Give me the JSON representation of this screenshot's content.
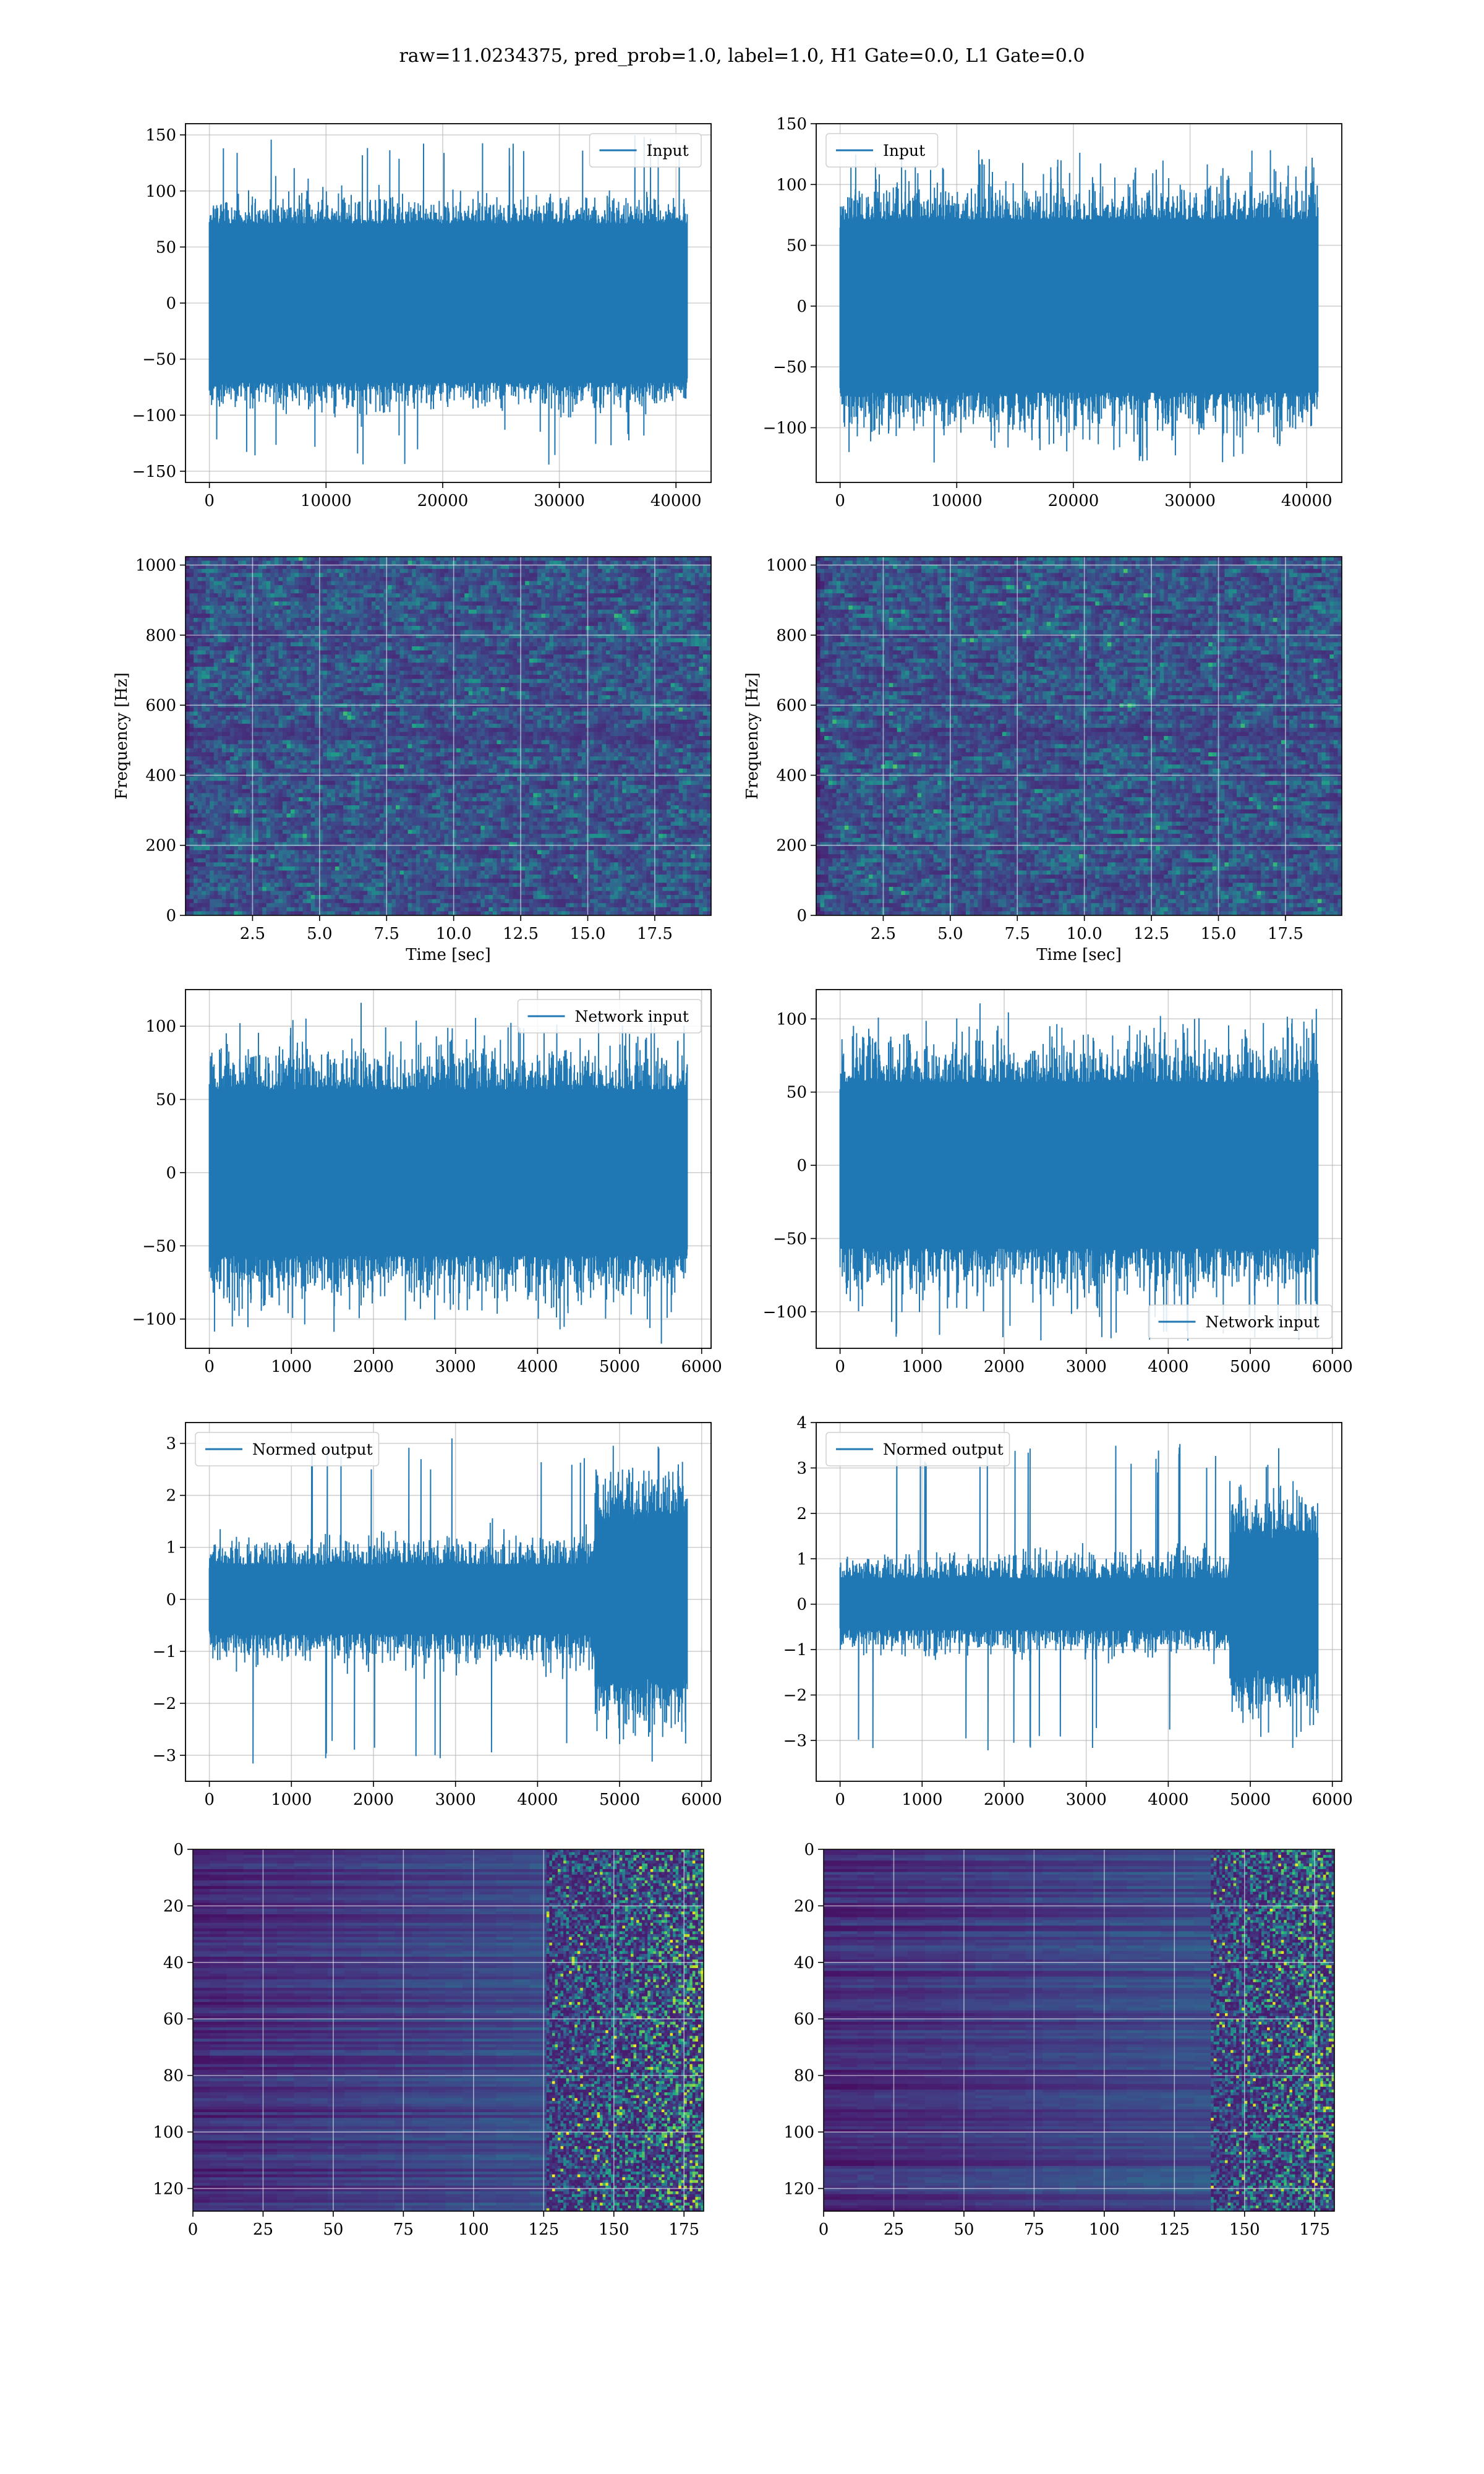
{
  "figure": {
    "title": "raw=11.0234375, pred_prob=1.0, label=1.0, H1 Gate=0.0, L1 Gate=0.0",
    "series_color": "#1f77b4"
  },
  "chart_data": [
    {
      "id": "input-h1",
      "type": "line",
      "legend": {
        "label": "Input",
        "loc": "upper right"
      },
      "x": [
        0,
        40960
      ],
      "xlim": [
        -2048,
        43008
      ],
      "ylim": [
        -160,
        160
      ],
      "xticks": [
        0,
        10000,
        20000,
        30000,
        40000
      ],
      "yticks": [
        -150,
        -100,
        -50,
        0,
        50,
        100,
        150
      ],
      "band": {
        "core": 75,
        "env_start": 90,
        "env_end": 90,
        "max_spike": 150,
        "min_spike": -145
      },
      "grid": true
    },
    {
      "id": "input-l1",
      "type": "line",
      "legend": {
        "label": "Input",
        "loc": "upper left"
      },
      "x": [
        0,
        40960
      ],
      "xlim": [
        -2048,
        43008
      ],
      "ylim": [
        -145,
        150
      ],
      "xticks": [
        0,
        10000,
        20000,
        30000,
        40000
      ],
      "yticks": [
        -100,
        -50,
        0,
        50,
        100,
        150
      ],
      "band": {
        "core": 75,
        "env_start": 95,
        "env_end": 95,
        "max_spike": 130,
        "min_spike": -130
      },
      "grid": true
    },
    {
      "id": "spectrogram-h1",
      "type": "heatmap",
      "xlabel": "Time [sec]",
      "ylabel": "Frequency [Hz]",
      "xlim": [
        0,
        19.6
      ],
      "ylim": [
        0,
        1024
      ],
      "xticks": [
        2.5,
        5.0,
        7.5,
        10.0,
        12.5,
        15.0,
        17.5
      ],
      "yticks": [
        0,
        200,
        400,
        600,
        800,
        1000
      ],
      "colormap": "viridis",
      "grid": true
    },
    {
      "id": "spectrogram-l1",
      "type": "heatmap",
      "xlabel": "Time [sec]",
      "ylabel": "Frequency [Hz]",
      "xlim": [
        0,
        19.6
      ],
      "ylim": [
        0,
        1024
      ],
      "xticks": [
        2.5,
        5.0,
        7.5,
        10.0,
        12.5,
        15.0,
        17.5
      ],
      "yticks": [
        0,
        200,
        400,
        600,
        800,
        1000
      ],
      "colormap": "viridis",
      "grid": true
    },
    {
      "id": "network-input-h1",
      "type": "line",
      "legend": {
        "label": "Network input",
        "loc": "upper right"
      },
      "x": [
        0,
        5824
      ],
      "xlim": [
        -291,
        6115
      ],
      "ylim": [
        -120,
        125
      ],
      "xticks": [
        0,
        1000,
        2000,
        3000,
        4000,
        5000,
        6000
      ],
      "yticks": [
        -100,
        -50,
        0,
        50,
        100
      ],
      "band": {
        "core": 60,
        "env_start": 80,
        "env_end": 80,
        "max_spike": 110,
        "min_spike": -110
      },
      "grid": true
    },
    {
      "id": "network-input-l1",
      "type": "line",
      "legend": {
        "label": "Network input",
        "loc": "lower right"
      },
      "x": [
        0,
        5824
      ],
      "xlim": [
        -291,
        6115
      ],
      "ylim": [
        -125,
        120
      ],
      "xticks": [
        0,
        1000,
        2000,
        3000,
        4000,
        5000,
        6000
      ],
      "yticks": [
        -100,
        -50,
        0,
        50,
        100
      ],
      "band": {
        "core": 60,
        "env_start": 80,
        "env_end": 80,
        "max_spike": 110,
        "min_spike": -120
      },
      "grid": true
    },
    {
      "id": "normed-output-h1",
      "type": "line",
      "legend": {
        "label": "Normed output",
        "loc": "upper left"
      },
      "x": [
        0,
        5824
      ],
      "xlim": [
        -291,
        6115
      ],
      "ylim": [
        -3.5,
        3.4
      ],
      "xticks": [
        0,
        1000,
        2000,
        3000,
        4000,
        5000,
        6000
      ],
      "yticks": [
        -3,
        -2,
        -1,
        0,
        1,
        2,
        3
      ],
      "band": {
        "core": 0.7,
        "env_start": 1.0,
        "env_end": 1.1,
        "burst_start": 4700,
        "burst_amp": 2.3,
        "max_spike": 3.1,
        "min_spike": -3.2
      },
      "grid": true
    },
    {
      "id": "normed-output-l1",
      "type": "line",
      "legend": {
        "label": "Normed output",
        "loc": "upper left"
      },
      "x": [
        0,
        5824
      ],
      "xlim": [
        -291,
        6115
      ],
      "ylim": [
        -3.9,
        4.0
      ],
      "xticks": [
        0,
        1000,
        2000,
        3000,
        4000,
        5000,
        6000
      ],
      "yticks": [
        -3,
        -2,
        -1,
        0,
        1,
        2,
        3,
        4
      ],
      "band": {
        "core": 0.6,
        "env_start": 0.9,
        "env_end": 1.0,
        "burst_start": 4750,
        "burst_amp": 2.2,
        "max_spike": 3.6,
        "min_spike": -3.3
      },
      "grid": true
    },
    {
      "id": "feature-map-h1",
      "type": "heatmap",
      "xlim": [
        0,
        182
      ],
      "ylim": [
        128,
        0
      ],
      "xticks": [
        0,
        25,
        50,
        75,
        100,
        125,
        150,
        175
      ],
      "yticks": [
        0,
        20,
        40,
        60,
        80,
        100,
        120
      ],
      "colormap": "viridis",
      "active_from": 125,
      "grid": true
    },
    {
      "id": "feature-map-l1",
      "type": "heatmap",
      "xlim": [
        0,
        182
      ],
      "ylim": [
        128,
        0
      ],
      "xticks": [
        0,
        25,
        50,
        75,
        100,
        125,
        150,
        175
      ],
      "yticks": [
        0,
        20,
        40,
        60,
        80,
        100,
        120
      ],
      "colormap": "viridis",
      "active_from": 135,
      "grid": true
    }
  ]
}
